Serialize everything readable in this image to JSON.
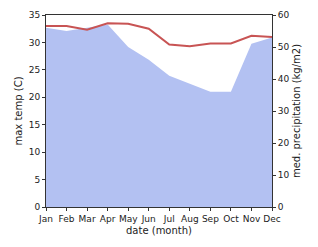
{
  "chart_data": {
    "type": "line",
    "x_label": "date (month)",
    "y_label": "max temp (C)",
    "y2_label": "med. precipitation (kg/m2)",
    "categories": [
      "Jan",
      "Feb",
      "Mar",
      "Apr",
      "May",
      "Jun",
      "Jul",
      "Aug",
      "Sep",
      "Oct",
      "Nov",
      "Dec"
    ],
    "ylim": [
      0,
      35
    ],
    "yticks": [
      0,
      5,
      10,
      15,
      20,
      25,
      30,
      35
    ],
    "y2lim": [
      0,
      60
    ],
    "y2ticks": [
      0,
      10,
      20,
      30,
      40,
      50,
      60
    ],
    "grid": false,
    "series": [
      {
        "name": "med. precipitation",
        "type": "area",
        "axis": "y2",
        "color": "#b3c1f2",
        "values": [
          56,
          55,
          56,
          57,
          50,
          46,
          41,
          38.5,
          36,
          36,
          51,
          53
        ]
      },
      {
        "name": "max temp",
        "type": "line",
        "color": "#c85454",
        "values": [
          33,
          33,
          32.3,
          33.5,
          33.4,
          32.5,
          29.6,
          29.3,
          29.8,
          29.8,
          31.2,
          31
        ]
      }
    ]
  }
}
